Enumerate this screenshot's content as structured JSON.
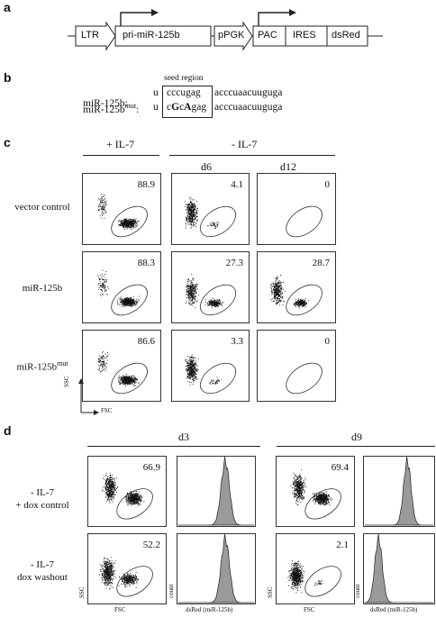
{
  "panels": {
    "a": "a",
    "b": "b",
    "c": "c",
    "d": "d"
  },
  "construct": {
    "elements": [
      "LTR",
      "pri-miR-125b",
      "pPGK",
      "PAC",
      "IRES",
      "dsRed"
    ]
  },
  "seed": {
    "label": "seed region",
    "rows": [
      {
        "name": "miR-125b:",
        "prefix": "u",
        "seed": "cccugag",
        "suffix": "acccuaacuuguga"
      },
      {
        "name_base": "miR-125b",
        "name_sup": "mut",
        "name_colon": ":",
        "prefix": "u",
        "seed_parts": [
          "c",
          "G",
          "c",
          "A",
          "gag"
        ],
        "suffix": "acccuaacuuguga"
      }
    ]
  },
  "panel_c": {
    "col_headers": [
      "+ IL-7",
      "- IL-7"
    ],
    "sub_headers": [
      "d6",
      "d12"
    ],
    "rows": [
      {
        "label": "vector control",
        "values": [
          "88.9",
          "4.1",
          "0"
        ]
      },
      {
        "label": "miR-125b",
        "values": [
          "88.3",
          "27.3",
          "28.7"
        ]
      },
      {
        "label_base": "miR-125b",
        "label_sup": "mut",
        "values": [
          "86.6",
          "3.3",
          "0"
        ]
      }
    ],
    "y_axis": "SSC",
    "x_axis": "FSC"
  },
  "panel_d": {
    "col_headers": [
      "d3",
      "d9"
    ],
    "rows": [
      {
        "label_line1": "- IL-7",
        "label_line2": "+ dox control",
        "values": [
          "66.9",
          "69.4"
        ]
      },
      {
        "label_line1": "- IL-7",
        "label_line2": "dox washout",
        "values": [
          "52.2",
          "2.1"
        ]
      }
    ],
    "scatter_y": "SSC",
    "scatter_x": "FSC",
    "hist_y": "count",
    "hist_x": "dsRed (miR-125b)"
  }
}
